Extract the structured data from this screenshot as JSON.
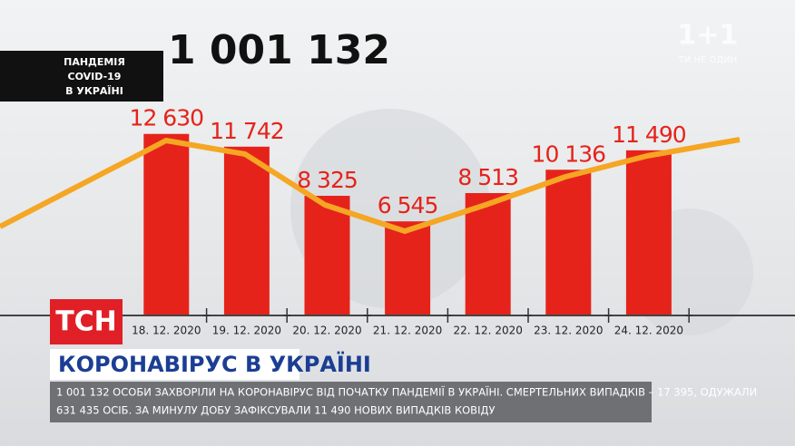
{
  "chart_data": {
    "type": "bar",
    "title": "1 001 132",
    "categories": [
      "18. 12. 2020",
      "19. 12. 2020",
      "20. 12. 2020",
      "21. 12. 2020",
      "22. 12. 2020",
      "23. 12. 2020",
      "24. 12. 2020"
    ],
    "values": [
      12630,
      11742,
      8325,
      6545,
      8513,
      10136,
      11490
    ],
    "value_labels": [
      "12 630",
      "11 742",
      "8 325",
      "6 545",
      "8 513",
      "10 136",
      "11 490"
    ],
    "color": "#e5231b",
    "ylim": [
      0,
      14000
    ]
  },
  "badge": {
    "lines": [
      "ПАНДЕМІЯ",
      "COVID-19",
      "В УКРАЇНІ"
    ]
  },
  "channel": {
    "logo": "1+1",
    "slogan": "ТИ НЕ ОДИН"
  },
  "show": {
    "logo": "ТСН"
  },
  "headline": "КОРОНАВІРУС В УКРАЇНІ",
  "ticker": {
    "lines": [
      "1 001 132 ОСОБИ ЗАХВОРІЛИ НА КОРОНАВІРУС ВІД ПОЧАТКУ ПАНДЕМІЇ В УКРАЇНІ. СМЕРТЕЛЬНИХ ВИПАДКІВ – 17 395, ОДУЖАЛИ",
      "631 435 ОСІБ. ЗА МИНУЛУ ДОБУ ЗАФІКСУВАЛИ 11 490 НОВИХ ВИПАДКІВ КОВІДУ"
    ]
  }
}
